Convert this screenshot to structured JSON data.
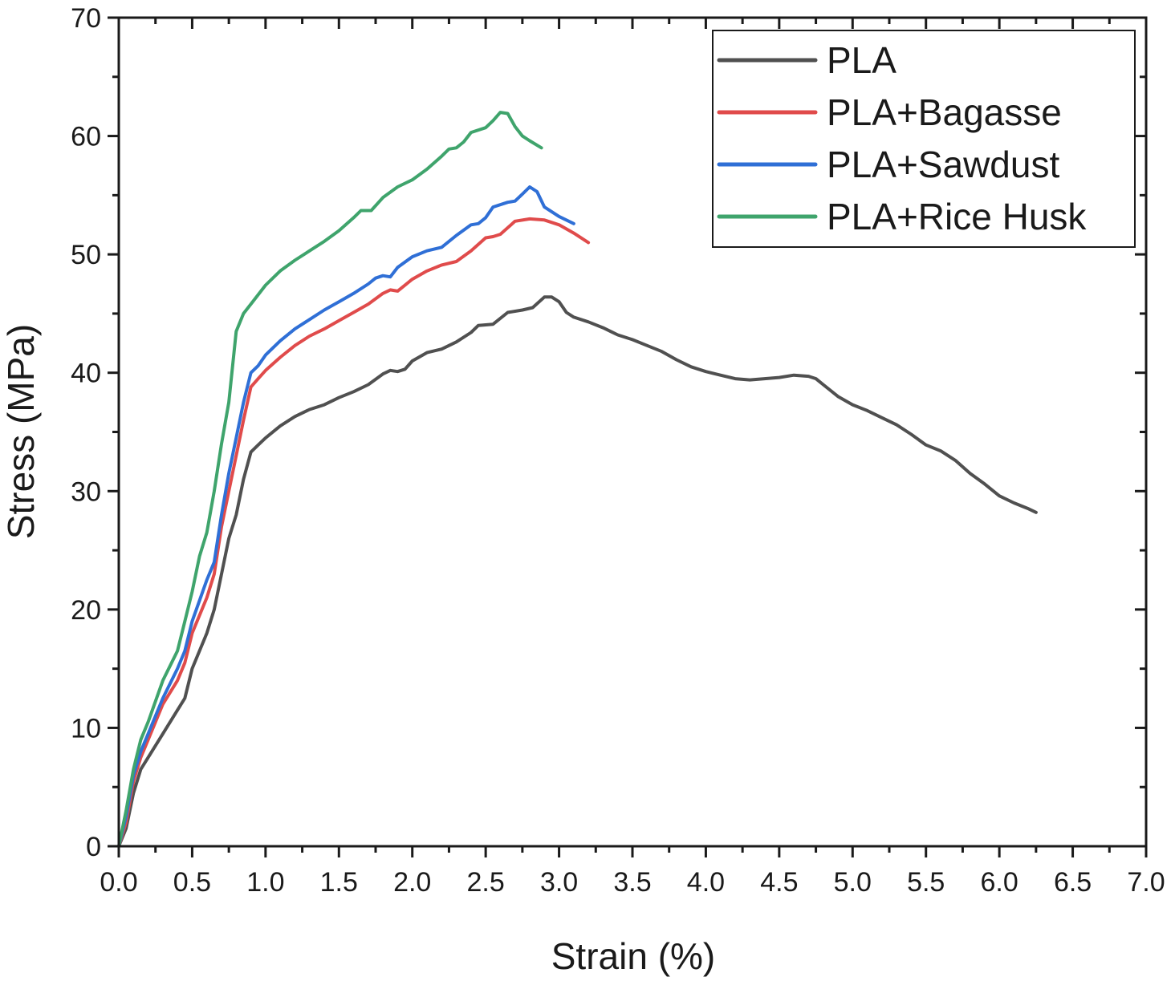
{
  "chart_data": {
    "type": "line",
    "xlabel": "Strain (%)",
    "ylabel": "Stress (MPa)",
    "xlim": [
      0,
      7
    ],
    "ylim": [
      0,
      70
    ],
    "x_ticks": [
      "0.0",
      "0.5",
      "1.0",
      "1.5",
      "2.0",
      "2.5",
      "3.0",
      "3.5",
      "4.0",
      "4.5",
      "5.0",
      "5.5",
      "6.0",
      "6.5",
      "7.0"
    ],
    "y_ticks": [
      "0",
      "10",
      "20",
      "30",
      "40",
      "50",
      "60",
      "70"
    ],
    "legend_position": "top-right",
    "series": [
      {
        "name": "PLA",
        "color": "#505050",
        "points": [
          [
            0,
            0
          ],
          [
            0.05,
            1.5
          ],
          [
            0.1,
            4.5
          ],
          [
            0.15,
            6.5
          ],
          [
            0.2,
            7.5
          ],
          [
            0.3,
            9.5
          ],
          [
            0.4,
            11.5
          ],
          [
            0.45,
            12.5
          ],
          [
            0.5,
            15
          ],
          [
            0.6,
            18
          ],
          [
            0.65,
            20
          ],
          [
            0.7,
            23
          ],
          [
            0.75,
            26
          ],
          [
            0.8,
            28
          ],
          [
            0.85,
            31
          ],
          [
            0.9,
            33.3
          ],
          [
            0.95,
            33.9
          ],
          [
            1.0,
            34.5
          ],
          [
            1.1,
            35.5
          ],
          [
            1.2,
            36.3
          ],
          [
            1.3,
            36.9
          ],
          [
            1.4,
            37.3
          ],
          [
            1.5,
            37.9
          ],
          [
            1.6,
            38.4
          ],
          [
            1.7,
            39
          ],
          [
            1.8,
            39.9
          ],
          [
            1.85,
            40.2
          ],
          [
            1.9,
            40.1
          ],
          [
            1.95,
            40.3
          ],
          [
            2.0,
            41
          ],
          [
            2.1,
            41.7
          ],
          [
            2.2,
            42
          ],
          [
            2.3,
            42.6
          ],
          [
            2.4,
            43.4
          ],
          [
            2.45,
            44
          ],
          [
            2.55,
            44.1
          ],
          [
            2.65,
            45.1
          ],
          [
            2.75,
            45.3
          ],
          [
            2.82,
            45.5
          ],
          [
            2.9,
            46.4
          ],
          [
            2.95,
            46.4
          ],
          [
            3.0,
            46
          ],
          [
            3.05,
            45.1
          ],
          [
            3.1,
            44.7
          ],
          [
            3.2,
            44.3
          ],
          [
            3.3,
            43.8
          ],
          [
            3.4,
            43.2
          ],
          [
            3.5,
            42.8
          ],
          [
            3.6,
            42.3
          ],
          [
            3.7,
            41.8
          ],
          [
            3.8,
            41.1
          ],
          [
            3.9,
            40.5
          ],
          [
            4.0,
            40.1
          ],
          [
            4.1,
            39.8
          ],
          [
            4.2,
            39.5
          ],
          [
            4.3,
            39.4
          ],
          [
            4.4,
            39.5
          ],
          [
            4.5,
            39.6
          ],
          [
            4.6,
            39.8
          ],
          [
            4.7,
            39.7
          ],
          [
            4.75,
            39.5
          ],
          [
            4.8,
            39
          ],
          [
            4.9,
            38
          ],
          [
            5.0,
            37.3
          ],
          [
            5.1,
            36.8
          ],
          [
            5.2,
            36.2
          ],
          [
            5.3,
            35.6
          ],
          [
            5.4,
            34.8
          ],
          [
            5.5,
            33.9
          ],
          [
            5.6,
            33.4
          ],
          [
            5.7,
            32.6
          ],
          [
            5.8,
            31.5
          ],
          [
            5.9,
            30.6
          ],
          [
            6.0,
            29.6
          ],
          [
            6.1,
            29
          ],
          [
            6.2,
            28.5
          ],
          [
            6.25,
            28.2
          ]
        ]
      },
      {
        "name": "PLA+Bagasse",
        "color": "#e04b4b",
        "points": [
          [
            0,
            0
          ],
          [
            0.05,
            2
          ],
          [
            0.1,
            5.5
          ],
          [
            0.15,
            7.5
          ],
          [
            0.2,
            9
          ],
          [
            0.3,
            12
          ],
          [
            0.4,
            14
          ],
          [
            0.45,
            15.5
          ],
          [
            0.5,
            18
          ],
          [
            0.6,
            21
          ],
          [
            0.65,
            23
          ],
          [
            0.7,
            27
          ],
          [
            0.75,
            30
          ],
          [
            0.8,
            33
          ],
          [
            0.85,
            36
          ],
          [
            0.9,
            38.8
          ],
          [
            0.95,
            39.5
          ],
          [
            1.0,
            40.2
          ],
          [
            1.1,
            41.3
          ],
          [
            1.2,
            42.3
          ],
          [
            1.3,
            43.1
          ],
          [
            1.4,
            43.7
          ],
          [
            1.5,
            44.4
          ],
          [
            1.6,
            45.1
          ],
          [
            1.7,
            45.8
          ],
          [
            1.8,
            46.7
          ],
          [
            1.85,
            47
          ],
          [
            1.9,
            46.9
          ],
          [
            2.0,
            47.9
          ],
          [
            2.1,
            48.6
          ],
          [
            2.2,
            49.1
          ],
          [
            2.3,
            49.4
          ],
          [
            2.4,
            50.3
          ],
          [
            2.5,
            51.4
          ],
          [
            2.55,
            51.5
          ],
          [
            2.6,
            51.7
          ],
          [
            2.7,
            52.8
          ],
          [
            2.8,
            53
          ],
          [
            2.9,
            52.9
          ],
          [
            3.0,
            52.5
          ],
          [
            3.1,
            51.8
          ],
          [
            3.2,
            51
          ]
        ]
      },
      {
        "name": "PLA+Sawdust",
        "color": "#2f6fd6",
        "points": [
          [
            0,
            0
          ],
          [
            0.05,
            2.5
          ],
          [
            0.1,
            6
          ],
          [
            0.15,
            8
          ],
          [
            0.2,
            9.5
          ],
          [
            0.3,
            12.5
          ],
          [
            0.4,
            15
          ],
          [
            0.45,
            16.5
          ],
          [
            0.5,
            19
          ],
          [
            0.6,
            22.5
          ],
          [
            0.65,
            24
          ],
          [
            0.7,
            28
          ],
          [
            0.75,
            31.5
          ],
          [
            0.8,
            34.5
          ],
          [
            0.85,
            37.5
          ],
          [
            0.9,
            40
          ],
          [
            0.95,
            40.6
          ],
          [
            1.0,
            41.5
          ],
          [
            1.1,
            42.7
          ],
          [
            1.2,
            43.7
          ],
          [
            1.3,
            44.5
          ],
          [
            1.4,
            45.3
          ],
          [
            1.5,
            46
          ],
          [
            1.6,
            46.7
          ],
          [
            1.7,
            47.5
          ],
          [
            1.75,
            48
          ],
          [
            1.8,
            48.2
          ],
          [
            1.85,
            48.1
          ],
          [
            1.9,
            48.9
          ],
          [
            2.0,
            49.8
          ],
          [
            2.1,
            50.3
          ],
          [
            2.2,
            50.6
          ],
          [
            2.3,
            51.6
          ],
          [
            2.4,
            52.5
          ],
          [
            2.45,
            52.6
          ],
          [
            2.5,
            53.1
          ],
          [
            2.55,
            54
          ],
          [
            2.65,
            54.4
          ],
          [
            2.7,
            54.5
          ],
          [
            2.75,
            55.1
          ],
          [
            2.8,
            55.7
          ],
          [
            2.85,
            55.3
          ],
          [
            2.9,
            54
          ],
          [
            3.0,
            53.2
          ],
          [
            3.1,
            52.6
          ]
        ]
      },
      {
        "name": "PLA+Rice Husk",
        "color": "#3fa46c",
        "points": [
          [
            0,
            0
          ],
          [
            0.05,
            3
          ],
          [
            0.1,
            6.5
          ],
          [
            0.15,
            9
          ],
          [
            0.2,
            10.5
          ],
          [
            0.3,
            14
          ],
          [
            0.4,
            16.5
          ],
          [
            0.45,
            19
          ],
          [
            0.5,
            21.5
          ],
          [
            0.55,
            24.5
          ],
          [
            0.6,
            26.5
          ],
          [
            0.65,
            30
          ],
          [
            0.7,
            34
          ],
          [
            0.75,
            37.5
          ],
          [
            0.8,
            43.5
          ],
          [
            0.85,
            45
          ],
          [
            0.9,
            45.8
          ],
          [
            1.0,
            47.4
          ],
          [
            1.1,
            48.6
          ],
          [
            1.2,
            49.5
          ],
          [
            1.3,
            50.3
          ],
          [
            1.4,
            51.1
          ],
          [
            1.5,
            52
          ],
          [
            1.6,
            53.1
          ],
          [
            1.65,
            53.7
          ],
          [
            1.72,
            53.7
          ],
          [
            1.8,
            54.8
          ],
          [
            1.9,
            55.7
          ],
          [
            2.0,
            56.3
          ],
          [
            2.1,
            57.2
          ],
          [
            2.2,
            58.3
          ],
          [
            2.25,
            58.9
          ],
          [
            2.3,
            59
          ],
          [
            2.35,
            59.5
          ],
          [
            2.4,
            60.3
          ],
          [
            2.5,
            60.7
          ],
          [
            2.55,
            61.3
          ],
          [
            2.6,
            62
          ],
          [
            2.65,
            61.9
          ],
          [
            2.7,
            60.8
          ],
          [
            2.75,
            60
          ],
          [
            2.8,
            59.6
          ],
          [
            2.88,
            59
          ]
        ]
      }
    ]
  }
}
